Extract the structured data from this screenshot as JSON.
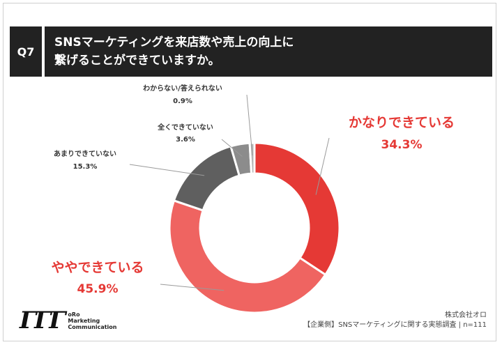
{
  "question": {
    "number": "Q7",
    "line1": "SNSマーケティングを来店数や売上の向上に",
    "line2": "繋げることができていますか。"
  },
  "chart_data": {
    "type": "pie",
    "slices": [
      {
        "label": "かなりできている",
        "value": 34.3,
        "display": "34.3%",
        "color": "#e53935",
        "emphasis": true
      },
      {
        "label": "ややできている",
        "value": 45.9,
        "display": "45.9%",
        "color": "#ef6461",
        "emphasis": true
      },
      {
        "label": "あまりできていない",
        "value": 15.3,
        "display": "15.3%",
        "color": "#5f5f5f",
        "emphasis": false
      },
      {
        "label": "全くできていない",
        "value": 3.6,
        "display": "3.6%",
        "color": "#8c8c8c",
        "emphasis": false
      },
      {
        "label": "わからない/答えられない",
        "value": 0.9,
        "display": "0.9%",
        "color": "#b5b5b5",
        "emphasis": false
      }
    ],
    "legend": "none",
    "donut": true
  },
  "logo": {
    "mark": "ΓΓΓ",
    "line1": "oRo",
    "line2": "Marketing",
    "line3": "Communication"
  },
  "footer": {
    "company": "株式会社オロ",
    "source": "【企業側】SNSマーケティングに関する実態調査 | n=111"
  }
}
